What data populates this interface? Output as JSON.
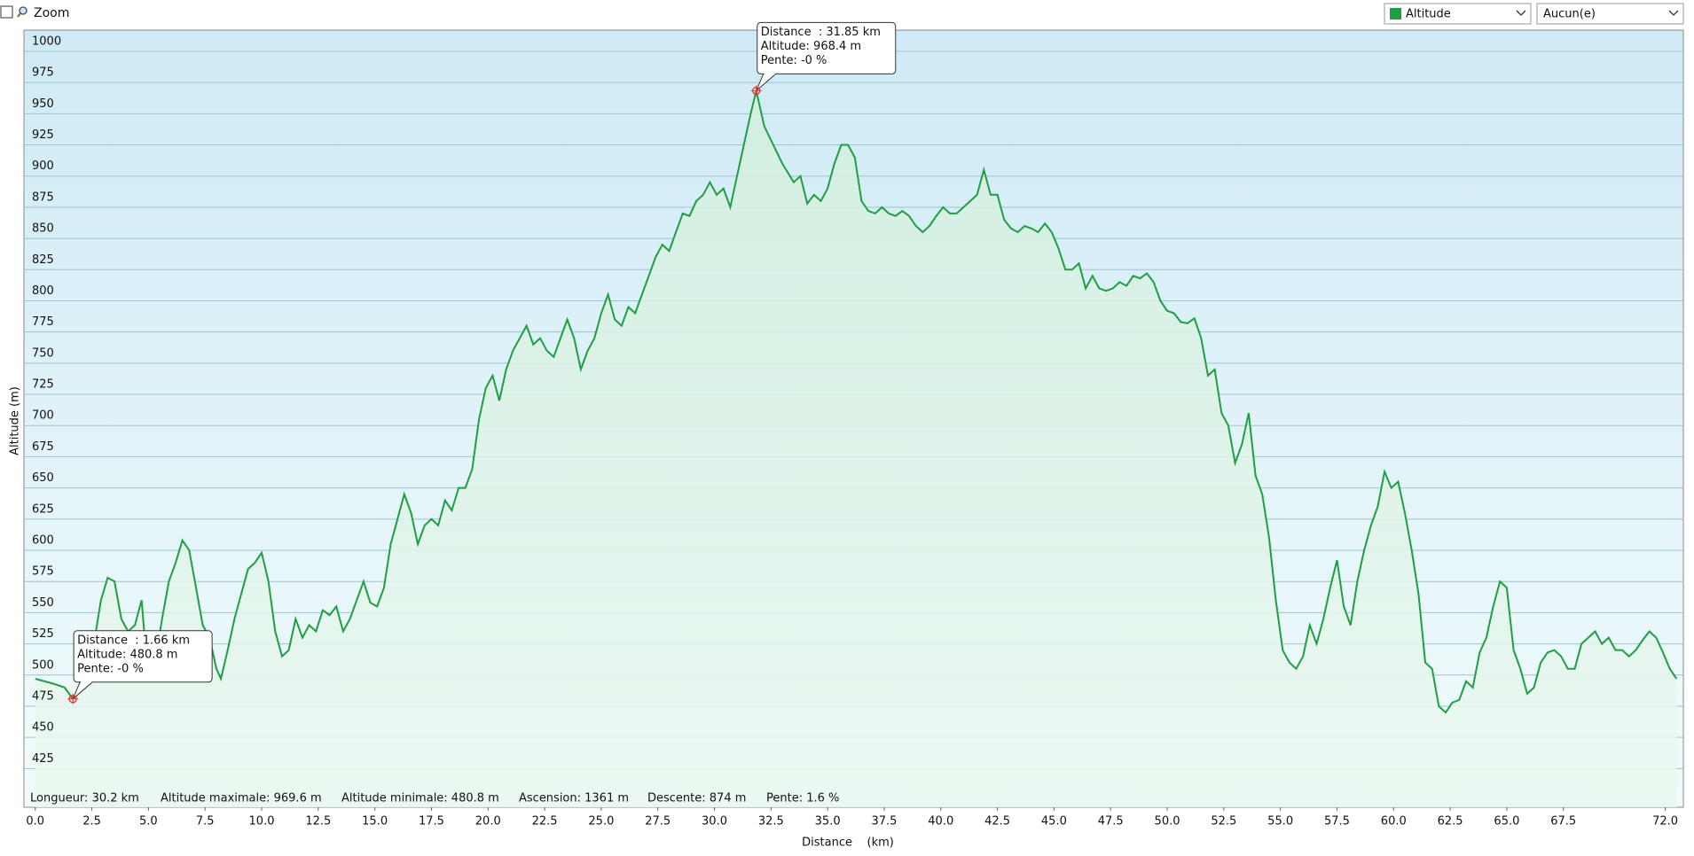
{
  "ui": {
    "zoom_label": "Zoom",
    "second_selector": "Aucun(e)"
  },
  "chart_data": {
    "type": "area",
    "x_label": "Distance    (km)",
    "y_label": "Altitude (m)",
    "xlim": [
      -0.5,
      72.8
    ],
    "ylim": [
      394,
      1017
    ],
    "xticks": [
      {
        "value": 0,
        "label": "0.0"
      },
      {
        "value": 2.5,
        "label": "2.5"
      },
      {
        "value": 5,
        "label": "5.0"
      },
      {
        "value": 7.5,
        "label": "7.5"
      },
      {
        "value": 10,
        "label": "10.0"
      },
      {
        "value": 12.5,
        "label": "12.5"
      },
      {
        "value": 15,
        "label": "15.0"
      },
      {
        "value": 17.5,
        "label": "17.5"
      },
      {
        "value": 20,
        "label": "20.0"
      },
      {
        "value": 22.5,
        "label": "22.5"
      },
      {
        "value": 25,
        "label": "25.0"
      },
      {
        "value": 27.5,
        "label": "27.5"
      },
      {
        "value": 30,
        "label": "30.0"
      },
      {
        "value": 32.5,
        "label": "32.5"
      },
      {
        "value": 35,
        "label": "35.0"
      },
      {
        "value": 37.5,
        "label": "37.5"
      },
      {
        "value": 40,
        "label": "40.0"
      },
      {
        "value": 42.5,
        "label": "42.5"
      },
      {
        "value": 45,
        "label": "45.0"
      },
      {
        "value": 47.5,
        "label": "47.5"
      },
      {
        "value": 50,
        "label": "50.0"
      },
      {
        "value": 52.5,
        "label": "52.5"
      },
      {
        "value": 55,
        "label": "55.0"
      },
      {
        "value": 57.5,
        "label": "57.5"
      },
      {
        "value": 60,
        "label": "60.0"
      },
      {
        "value": 62.5,
        "label": "62.5"
      },
      {
        "value": 65,
        "label": "65.0"
      },
      {
        "value": 67.5,
        "label": "67.5"
      },
      {
        "value": 72,
        "label": "72.0"
      }
    ],
    "yticks": [
      425,
      450,
      475,
      500,
      525,
      550,
      575,
      600,
      625,
      650,
      675,
      700,
      725,
      750,
      775,
      800,
      825,
      850,
      875,
      900,
      925,
      950,
      975,
      1000
    ],
    "grid": true,
    "x": [
      0,
      0.8,
      1.3,
      1.66,
      2.1,
      2.5,
      2.9,
      3.2,
      3.5,
      3.8,
      4.1,
      4.4,
      4.7,
      4.9,
      5,
      5.3,
      5.6,
      5.9,
      6.2,
      6.5,
      6.8,
      7.1,
      7.4,
      7.7,
      8,
      8.2,
      8.5,
      8.8,
      9.1,
      9.4,
      9.7,
      10,
      10.3,
      10.6,
      10.9,
      11.2,
      11.5,
      11.8,
      12.1,
      12.4,
      12.7,
      13,
      13.3,
      13.6,
      13.9,
      14.2,
      14.5,
      14.8,
      15.1,
      15.4,
      15.7,
      16,
      16.3,
      16.6,
      16.9,
      17.2,
      17.5,
      17.8,
      18.1,
      18.4,
      18.7,
      19,
      19.3,
      19.6,
      19.9,
      20.2,
      20.5,
      20.8,
      21.1,
      21.4,
      21.7,
      22,
      22.3,
      22.6,
      22.9,
      23.2,
      23.5,
      23.8,
      24.1,
      24.4,
      24.7,
      25,
      25.3,
      25.6,
      25.9,
      26.2,
      26.5,
      26.8,
      27.1,
      27.4,
      27.7,
      28,
      28.3,
      28.6,
      28.9,
      29.2,
      29.5,
      29.8,
      30.1,
      30.4,
      30.7,
      31,
      31.3,
      31.6,
      31.85,
      32.2,
      32.6,
      33,
      33.5,
      33.8,
      34.1,
      34.4,
      34.7,
      35,
      35.3,
      35.6,
      35.9,
      36.2,
      36.5,
      36.8,
      37.1,
      37.4,
      37.7,
      38,
      38.3,
      38.6,
      38.9,
      39.2,
      39.5,
      39.8,
      40.1,
      40.4,
      40.7,
      41,
      41.3,
      41.6,
      41.9,
      42.2,
      42.5,
      42.8,
      43.1,
      43.4,
      43.7,
      44,
      44.3,
      44.6,
      44.9,
      45.2,
      45.5,
      45.8,
      46.1,
      46.4,
      46.7,
      47,
      47.3,
      47.6,
      47.9,
      48.2,
      48.5,
      48.8,
      49.1,
      49.4,
      49.7,
      50,
      50.3,
      50.6,
      50.9,
      51.2,
      51.5,
      51.8,
      52.1,
      52.4,
      52.7,
      53,
      53.3,
      53.6,
      53.9,
      54.2,
      54.5,
      54.8,
      55.1,
      55.4,
      55.7,
      56,
      56.3,
      56.6,
      56.9,
      57.2,
      57.5,
      57.8,
      58.1,
      58.4,
      58.7,
      59,
      59.3,
      59.6,
      59.9,
      60.2,
      60.5,
      60.8,
      61.1,
      61.4,
      61.7,
      62,
      62.3,
      62.6,
      62.9,
      63.2,
      63.5,
      63.8,
      64.1,
      64.4,
      64.7,
      65,
      65.3,
      65.6,
      65.9,
      66.2,
      66.5,
      66.8,
      67.1,
      67.4,
      67.7,
      68,
      68.3,
      68.6,
      68.9,
      69.2,
      69.5,
      69.8,
      70.1,
      70.4,
      70.7,
      71,
      71.3,
      71.6,
      71.9,
      72.2,
      72.5
    ],
    "series": [
      {
        "name": "Altitude",
        "color": "#1f9e45",
        "values": [
          497,
          493,
          490,
          480.8,
          490,
          515,
          560,
          578,
          575,
          545,
          535,
          540,
          560,
          515,
          495,
          510,
          545,
          575,
          590,
          608,
          600,
          570,
          540,
          530,
          505,
          497,
          520,
          545,
          565,
          585,
          590,
          598,
          575,
          535,
          515,
          520,
          545,
          530,
          540,
          535,
          552,
          548,
          555,
          535,
          545,
          560,
          575,
          558,
          555,
          570,
          605,
          625,
          645,
          630,
          605,
          620,
          625,
          620,
          640,
          632,
          650,
          650,
          665,
          705,
          730,
          740,
          720,
          745,
          760,
          770,
          780,
          765,
          770,
          760,
          755,
          770,
          785,
          770,
          745,
          760,
          770,
          790,
          805,
          785,
          780,
          795,
          790,
          805,
          820,
          835,
          845,
          840,
          855,
          870,
          868,
          880,
          885,
          895,
          885,
          890,
          875,
          900,
          925,
          950,
          968.4,
          940,
          925,
          910,
          895,
          900,
          878,
          885,
          880,
          890,
          910,
          925,
          925,
          915,
          880,
          872,
          870,
          875,
          870,
          868,
          872,
          868,
          860,
          855,
          860,
          868,
          875,
          870,
          870,
          875,
          880,
          885,
          905,
          885,
          885,
          865,
          858,
          855,
          860,
          858,
          855,
          862,
          855,
          842,
          825,
          825,
          830,
          810,
          820,
          810,
          808,
          810,
          815,
          812,
          820,
          818,
          822,
          815,
          800,
          792,
          790,
          783,
          782,
          786,
          770,
          740,
          745,
          710,
          700,
          670,
          685,
          710,
          660,
          645,
          610,
          560,
          520,
          510,
          505,
          515,
          540,
          525,
          545,
          570,
          592,
          555,
          540,
          575,
          600,
          620,
          635,
          663,
          650,
          655,
          630,
          600,
          565,
          510,
          505,
          475,
          470,
          478,
          480,
          495,
          490,
          518,
          530,
          555,
          575,
          570,
          520,
          505,
          485,
          490,
          510,
          518,
          520,
          515,
          505,
          505,
          525,
          530,
          535,
          525,
          530,
          520,
          520,
          515,
          520,
          528,
          535,
          530,
          518,
          505,
          497
        ]
      }
    ],
    "annotations": [
      {
        "lines": [
          "Distance  : 1.66 km",
          "Altitude: 480.8 m",
          "Pente: -0 %"
        ]
      },
      {
        "lines": [
          "Distance  : 31.85 km",
          "Altitude: 968.4 m",
          "Pente: -0 %"
        ]
      }
    ],
    "stats": [
      "Longueur: 30.2 km",
      "Altitude maximale: 969.6 m",
      "Altitude minimale: 480.8 m",
      "Ascension: 1361 m",
      "Descente: 874 m",
      "Pente: 1.6 %"
    ]
  }
}
